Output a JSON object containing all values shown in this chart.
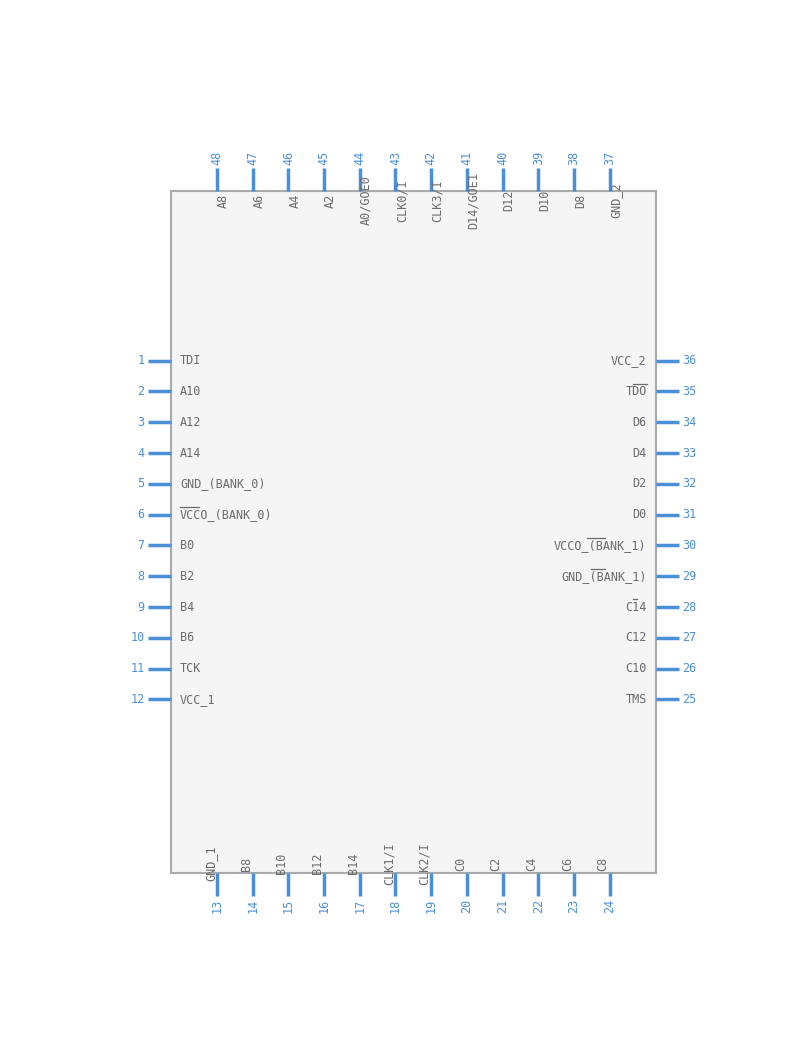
{
  "bg_color": "#ffffff",
  "body_edge_color": "#aaaaaa",
  "body_fill_color": "#f5f5f5",
  "pin_color": "#4a90d9",
  "text_color": "#6b6b6b",
  "pin_number_color": "#4a90d9",
  "left_pins": [
    {
      "num": "1",
      "name": "TDI",
      "overbar": ""
    },
    {
      "num": "2",
      "name": "A10",
      "overbar": ""
    },
    {
      "num": "3",
      "name": "A12",
      "overbar": ""
    },
    {
      "num": "4",
      "name": "A14",
      "overbar": ""
    },
    {
      "num": "5",
      "name": "GND_(BANK_0)",
      "overbar": ""
    },
    {
      "num": "6",
      "name": "VCCO_(BANK_0)",
      "overbar": "VCCO"
    },
    {
      "num": "7",
      "name": "B0",
      "overbar": ""
    },
    {
      "num": "8",
      "name": "B2",
      "overbar": ""
    },
    {
      "num": "9",
      "name": "B4",
      "overbar": ""
    },
    {
      "num": "10",
      "name": "B6",
      "overbar": ""
    },
    {
      "num": "11",
      "name": "TCK",
      "overbar": ""
    },
    {
      "num": "12",
      "name": "VCC_1",
      "overbar": ""
    }
  ],
  "right_pins": [
    {
      "num": "36",
      "name": "VCC_2",
      "overbar": ""
    },
    {
      "num": "35",
      "name": "TDO",
      "overbar": "TDO"
    },
    {
      "num": "34",
      "name": "D6",
      "overbar": ""
    },
    {
      "num": "33",
      "name": "D4",
      "overbar": ""
    },
    {
      "num": "32",
      "name": "D2",
      "overbar": ""
    },
    {
      "num": "31",
      "name": "D0",
      "overbar": ""
    },
    {
      "num": "30",
      "name": "VCCO_(BANK_1)",
      "overbar": "VCCO"
    },
    {
      "num": "29",
      "name": "GND_(BANK_1)",
      "overbar": "GND"
    },
    {
      "num": "28",
      "name": "C14",
      "overbar": "C"
    },
    {
      "num": "27",
      "name": "C12",
      "overbar": ""
    },
    {
      "num": "26",
      "name": "C10",
      "overbar": ""
    },
    {
      "num": "25",
      "name": "TMS",
      "overbar": ""
    }
  ],
  "top_pins": [
    {
      "num": "48",
      "name": "A8"
    },
    {
      "num": "47",
      "name": "A6"
    },
    {
      "num": "46",
      "name": "A4"
    },
    {
      "num": "45",
      "name": "A2"
    },
    {
      "num": "44",
      "name": "A0/GOE0"
    },
    {
      "num": "43",
      "name": "CLK0/I"
    },
    {
      "num": "42",
      "name": "CLK3/I"
    },
    {
      "num": "41",
      "name": "D14/GOE1"
    },
    {
      "num": "40",
      "name": "D12"
    },
    {
      "num": "39",
      "name": "D10"
    },
    {
      "num": "38",
      "name": "D8"
    },
    {
      "num": "37",
      "name": "GND_2"
    }
  ],
  "bottom_pins": [
    {
      "num": "13",
      "name": "GND_1"
    },
    {
      "num": "14",
      "name": "B8"
    },
    {
      "num": "15",
      "name": "B10"
    },
    {
      "num": "16",
      "name": "B12"
    },
    {
      "num": "17",
      "name": "B14"
    },
    {
      "num": "18",
      "name": "CLK1/I"
    },
    {
      "num": "19",
      "name": "CLK2/I"
    },
    {
      "num": "20",
      "name": "C0"
    },
    {
      "num": "21",
      "name": "C2"
    },
    {
      "num": "22",
      "name": "C4"
    },
    {
      "num": "23",
      "name": "C6"
    },
    {
      "num": "24",
      "name": "C8"
    }
  ]
}
